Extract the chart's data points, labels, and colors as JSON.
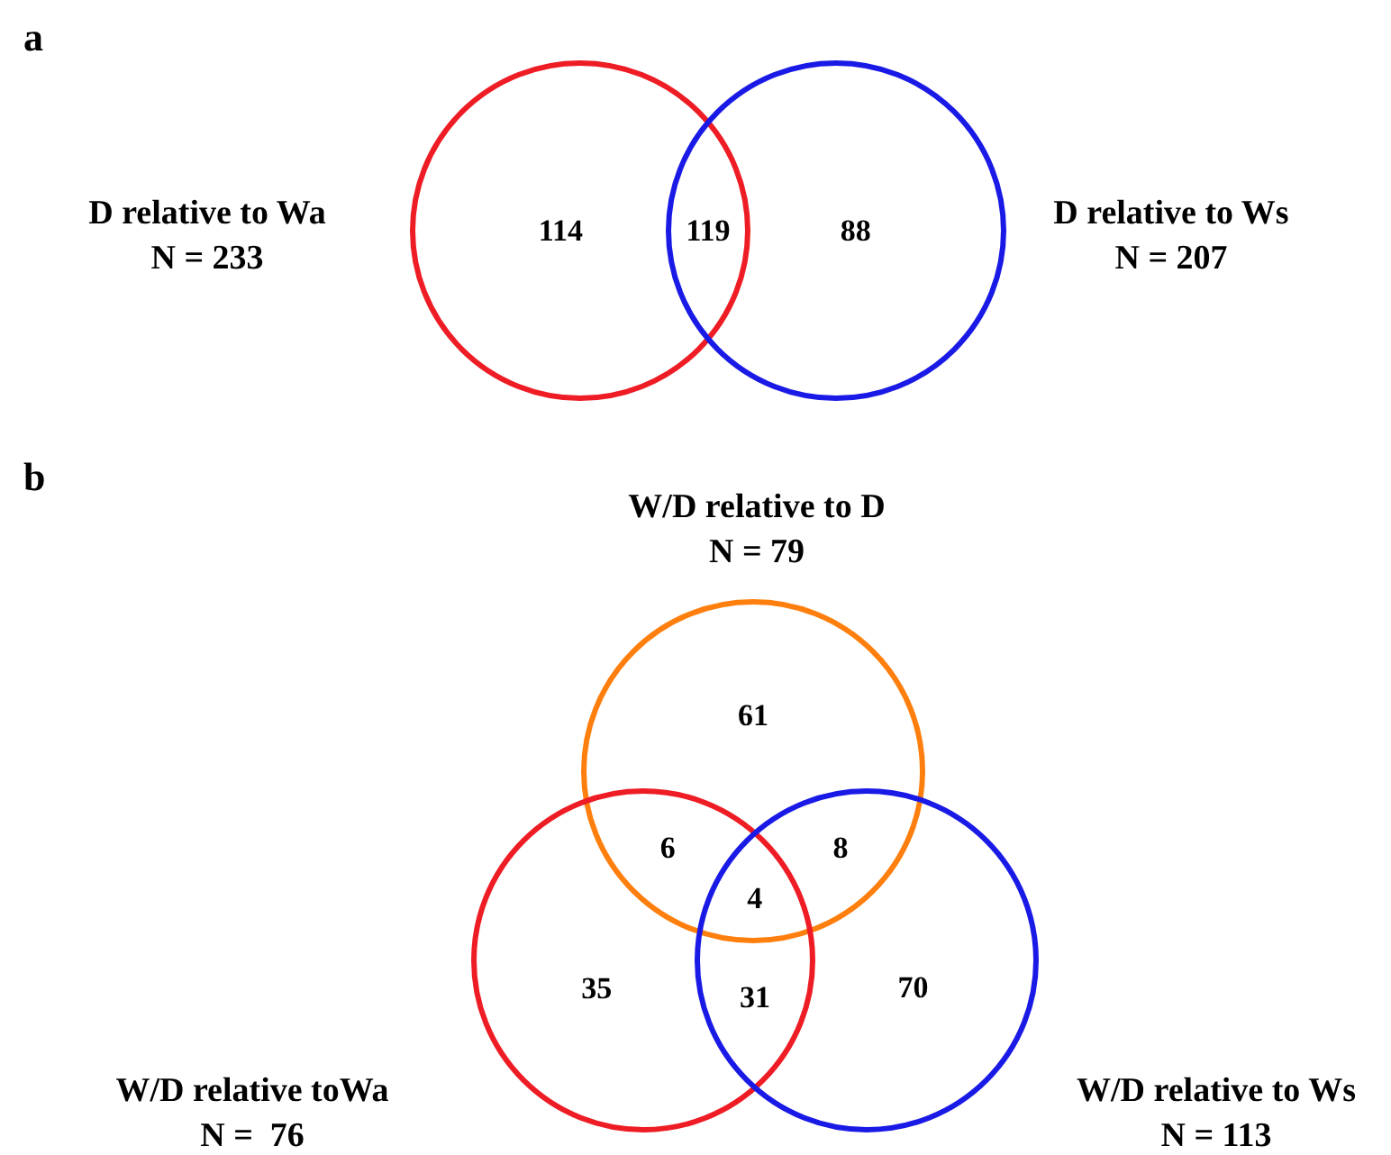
{
  "chart_data": [
    {
      "type": "other",
      "title": "a",
      "categories": [
        "D relative to Wa",
        "D relative to Ws"
      ],
      "values": [
        233,
        207
      ],
      "value_labels": [
        "N = 233",
        "N = 207"
      ],
      "colors": [
        "#ee1c24",
        "#1a1ae6"
      ],
      "annotations": [
        "114",
        "119",
        "88"
      ]
    },
    {
      "type": "other",
      "title": "b",
      "categories": [
        "W/D relative to D",
        "W/D relative toWa",
        "W/D relative to Ws"
      ],
      "values": [
        79,
        76,
        113
      ],
      "value_labels": [
        "N = 79",
        "N =  76",
        "N = 113"
      ],
      "colors": [
        "#ff7f0e",
        "#ee1c24",
        "#1a1ae6"
      ],
      "annotations": [
        "61",
        "35",
        "70",
        "6",
        "8",
        "31",
        "4"
      ]
    }
  ]
}
